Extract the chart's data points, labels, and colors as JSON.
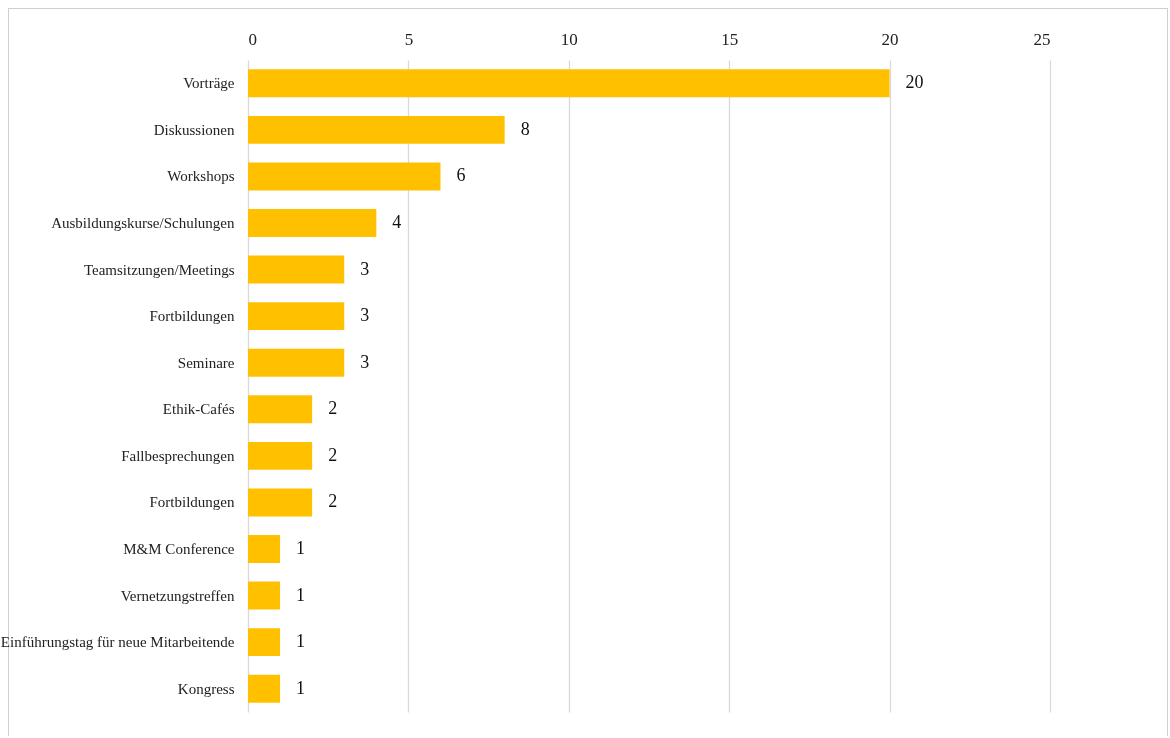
{
  "chart_data": {
    "type": "bar",
    "orientation": "horizontal",
    "categories": [
      "Vorträge",
      "Diskussionen",
      "Workshops",
      "Ausbildungskurse/Schulungen",
      "Teamsitzungen/Meetings",
      "Fortbildungen",
      "Seminare",
      "Ethik-Cafés",
      "Fallbesprechungen",
      "Fortbildungen",
      "M&M Conference",
      "Vernetzungstreffen",
      "Einführungstag für neue Mitarbeitende",
      "Kongress"
    ],
    "values": [
      20,
      8,
      6,
      4,
      3,
      3,
      3,
      2,
      2,
      2,
      1,
      1,
      1,
      1
    ],
    "color": "#ffc000",
    "xlim": [
      0,
      25
    ],
    "xticks": [
      0,
      5,
      10,
      15,
      20,
      25
    ],
    "grid": true,
    "data_labels": true
  }
}
